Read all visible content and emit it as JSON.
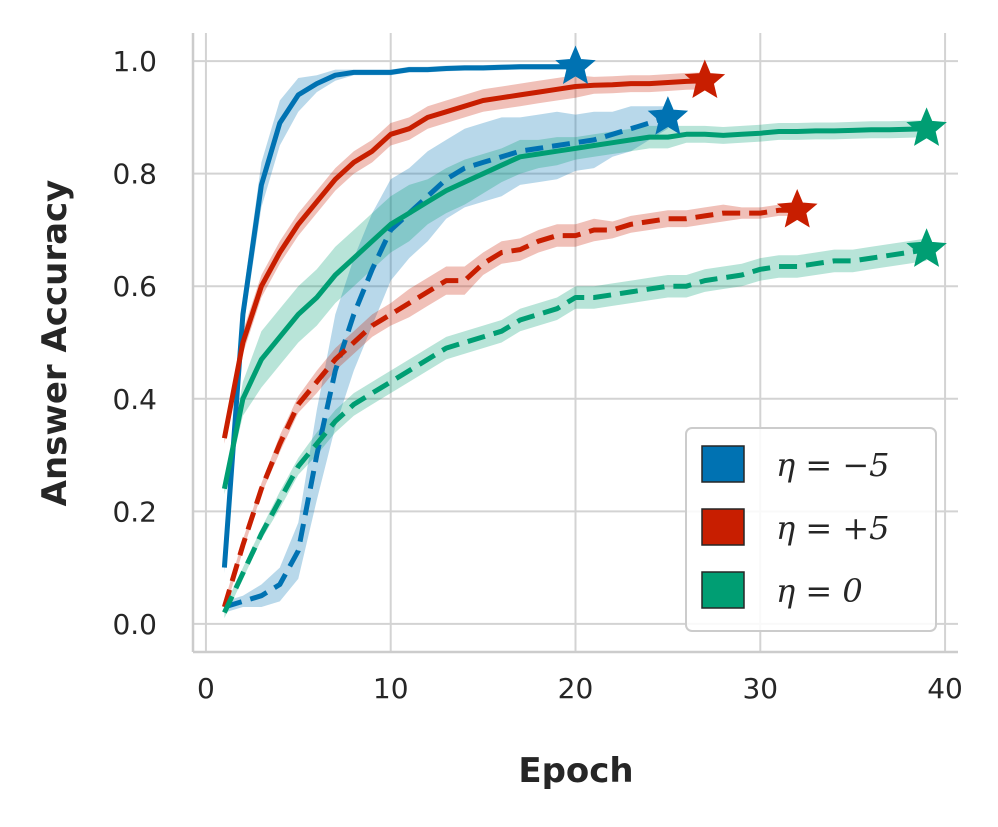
{
  "chart_data": {
    "type": "line",
    "xlabel": "Epoch",
    "ylabel": "Answer Accuracy",
    "xlim": [
      -0.7,
      40.7
    ],
    "ylim": [
      -0.05,
      1.05
    ],
    "xticks": [
      0,
      10,
      20,
      30,
      40
    ],
    "yticks": [
      0.0,
      0.2,
      0.4,
      0.6,
      0.8,
      1.0
    ],
    "xtick_labels": [
      "0",
      "10",
      "20",
      "30",
      "40"
    ],
    "ytick_labels": [
      "0.0",
      "0.2",
      "0.4",
      "0.6",
      "0.8",
      "1.0"
    ],
    "grid": true,
    "legend_position": "lower-right",
    "legend": [
      {
        "label": "η = −5",
        "color": "#0072b2"
      },
      {
        "label": "η = +5",
        "color": "#c81e00"
      },
      {
        "label": "η = 0",
        "color": "#009e73"
      }
    ],
    "series": [
      {
        "name": "η = −5 (solid)",
        "color": "#0072b2",
        "style": "solid",
        "x": [
          1,
          2,
          3,
          4,
          5,
          6,
          7,
          8,
          9,
          10,
          11,
          12,
          13,
          14,
          15,
          16,
          17,
          18,
          19,
          20
        ],
        "y": [
          0.1,
          0.55,
          0.78,
          0.89,
          0.94,
          0.96,
          0.975,
          0.98,
          0.98,
          0.98,
          0.985,
          0.985,
          0.987,
          0.988,
          0.988,
          0.989,
          0.99,
          0.99,
          0.99,
          0.99
        ],
        "band": [
          0.01,
          0.03,
          0.04,
          0.04,
          0.03,
          0.015,
          0.01,
          0.005,
          0.005,
          0.005,
          0.005,
          0.005,
          0.005,
          0.005,
          0.005,
          0.005,
          0.005,
          0.005,
          0.005,
          0.005
        ],
        "final_marker": {
          "x": 20,
          "y": 0.99
        }
      },
      {
        "name": "η = −5 (dashed)",
        "color": "#0072b2",
        "style": "dashed",
        "x": [
          1,
          2,
          3,
          4,
          5,
          6,
          7,
          8,
          9,
          10,
          11,
          12,
          13,
          14,
          15,
          16,
          17,
          18,
          19,
          20,
          21,
          22,
          23,
          24,
          25
        ],
        "y": [
          0.03,
          0.04,
          0.05,
          0.07,
          0.13,
          0.3,
          0.45,
          0.55,
          0.63,
          0.7,
          0.73,
          0.76,
          0.79,
          0.81,
          0.82,
          0.83,
          0.84,
          0.845,
          0.85,
          0.855,
          0.86,
          0.87,
          0.88,
          0.89,
          0.9
        ],
        "band": [
          0.01,
          0.01,
          0.02,
          0.03,
          0.05,
          0.08,
          0.1,
          0.1,
          0.1,
          0.09,
          0.08,
          0.08,
          0.07,
          0.07,
          0.07,
          0.07,
          0.06,
          0.06,
          0.06,
          0.05,
          0.05,
          0.04,
          0.04,
          0.03,
          0.02
        ],
        "final_marker": {
          "x": 25,
          "y": 0.9
        }
      },
      {
        "name": "η = +5 (solid)",
        "color": "#c81e00",
        "style": "solid",
        "x": [
          1,
          2,
          3,
          4,
          5,
          6,
          7,
          8,
          9,
          10,
          11,
          12,
          13,
          14,
          15,
          16,
          17,
          18,
          19,
          20,
          21,
          22,
          23,
          24,
          25,
          26,
          27
        ],
        "y": [
          0.33,
          0.5,
          0.6,
          0.66,
          0.71,
          0.75,
          0.79,
          0.82,
          0.84,
          0.87,
          0.88,
          0.9,
          0.91,
          0.92,
          0.93,
          0.935,
          0.94,
          0.945,
          0.95,
          0.955,
          0.957,
          0.958,
          0.96,
          0.96,
          0.962,
          0.964,
          0.965
        ],
        "band": [
          0.01,
          0.02,
          0.02,
          0.02,
          0.02,
          0.02,
          0.02,
          0.02,
          0.02,
          0.02,
          0.02,
          0.02,
          0.02,
          0.02,
          0.02,
          0.02,
          0.02,
          0.02,
          0.02,
          0.02,
          0.015,
          0.015,
          0.015,
          0.015,
          0.015,
          0.015,
          0.015
        ],
        "final_marker": {
          "x": 27,
          "y": 0.965
        }
      },
      {
        "name": "η = +5 (dashed)",
        "color": "#c81e00",
        "style": "dashed",
        "x": [
          1,
          2,
          3,
          4,
          5,
          6,
          7,
          8,
          9,
          10,
          11,
          12,
          13,
          14,
          15,
          16,
          17,
          18,
          19,
          20,
          21,
          22,
          23,
          24,
          25,
          26,
          27,
          28,
          29,
          30,
          31,
          32
        ],
        "y": [
          0.03,
          0.14,
          0.24,
          0.32,
          0.39,
          0.43,
          0.47,
          0.5,
          0.53,
          0.55,
          0.57,
          0.59,
          0.61,
          0.61,
          0.64,
          0.66,
          0.665,
          0.68,
          0.69,
          0.69,
          0.7,
          0.7,
          0.71,
          0.715,
          0.72,
          0.72,
          0.725,
          0.73,
          0.73,
          0.73,
          0.735,
          0.735
        ],
        "band": [
          0.01,
          0.01,
          0.01,
          0.015,
          0.015,
          0.02,
          0.02,
          0.02,
          0.02,
          0.02,
          0.025,
          0.025,
          0.025,
          0.025,
          0.02,
          0.02,
          0.02,
          0.02,
          0.02,
          0.02,
          0.02,
          0.015,
          0.015,
          0.015,
          0.015,
          0.015,
          0.015,
          0.015,
          0.01,
          0.01,
          0.01,
          0.01
        ],
        "final_marker": {
          "x": 32,
          "y": 0.735
        }
      },
      {
        "name": "η = 0 (solid)",
        "color": "#009e73",
        "style": "solid",
        "x": [
          1,
          2,
          3,
          4,
          5,
          6,
          7,
          8,
          9,
          10,
          11,
          12,
          13,
          14,
          15,
          16,
          17,
          18,
          19,
          20,
          21,
          22,
          23,
          24,
          25,
          26,
          27,
          28,
          29,
          30,
          31,
          32,
          33,
          34,
          35,
          36,
          37,
          38,
          39
        ],
        "y": [
          0.24,
          0.4,
          0.47,
          0.51,
          0.55,
          0.58,
          0.62,
          0.65,
          0.68,
          0.71,
          0.73,
          0.75,
          0.77,
          0.785,
          0.8,
          0.815,
          0.83,
          0.835,
          0.84,
          0.845,
          0.85,
          0.855,
          0.86,
          0.865,
          0.865,
          0.87,
          0.87,
          0.868,
          0.87,
          0.872,
          0.875,
          0.875,
          0.876,
          0.876,
          0.877,
          0.878,
          0.878,
          0.879,
          0.88
        ],
        "band": [
          0.01,
          0.03,
          0.05,
          0.05,
          0.05,
          0.05,
          0.05,
          0.05,
          0.05,
          0.05,
          0.05,
          0.04,
          0.04,
          0.04,
          0.035,
          0.03,
          0.03,
          0.025,
          0.025,
          0.02,
          0.02,
          0.02,
          0.02,
          0.02,
          0.02,
          0.015,
          0.015,
          0.015,
          0.015,
          0.015,
          0.015,
          0.015,
          0.015,
          0.015,
          0.015,
          0.015,
          0.015,
          0.015,
          0.015
        ],
        "final_marker": {
          "x": 39,
          "y": 0.88
        }
      },
      {
        "name": "η = 0 (dashed)",
        "color": "#009e73",
        "style": "dashed",
        "x": [
          1,
          2,
          3,
          4,
          5,
          6,
          7,
          8,
          9,
          10,
          11,
          12,
          13,
          14,
          15,
          16,
          17,
          18,
          19,
          20,
          21,
          22,
          23,
          24,
          25,
          26,
          27,
          28,
          29,
          30,
          31,
          32,
          33,
          34,
          35,
          36,
          37,
          38,
          39
        ],
        "y": [
          0.02,
          0.09,
          0.16,
          0.22,
          0.28,
          0.32,
          0.36,
          0.39,
          0.41,
          0.43,
          0.45,
          0.47,
          0.49,
          0.5,
          0.51,
          0.52,
          0.54,
          0.55,
          0.56,
          0.58,
          0.58,
          0.585,
          0.59,
          0.595,
          0.6,
          0.6,
          0.61,
          0.615,
          0.62,
          0.63,
          0.635,
          0.635,
          0.64,
          0.645,
          0.645,
          0.65,
          0.655,
          0.66,
          0.665
        ],
        "band": [
          0.01,
          0.01,
          0.01,
          0.015,
          0.015,
          0.02,
          0.02,
          0.02,
          0.02,
          0.02,
          0.02,
          0.02,
          0.02,
          0.02,
          0.02,
          0.02,
          0.02,
          0.02,
          0.02,
          0.02,
          0.02,
          0.02,
          0.02,
          0.02,
          0.02,
          0.02,
          0.02,
          0.02,
          0.02,
          0.02,
          0.02,
          0.02,
          0.02,
          0.02,
          0.02,
          0.02,
          0.02,
          0.02,
          0.02
        ],
        "final_marker": {
          "x": 39,
          "y": 0.665
        }
      }
    ]
  }
}
